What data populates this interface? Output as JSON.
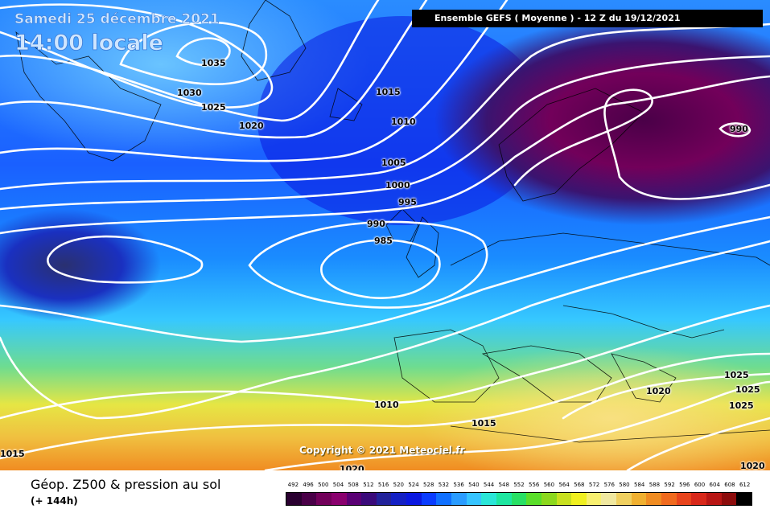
{
  "header": {
    "date_label": "Samedi 25 décembre 2021",
    "time_label": "14:00 locale",
    "model_run": "Ensemble GEFS  ( Moyenne )  -  12 Z du 19/12/2021"
  },
  "copyright": "Copyright © 2021 Meteociel.fr",
  "footer": {
    "product_title": "Géop. Z500 & pression au sol",
    "forecast_hour": "(+ 144h)"
  },
  "isobar_labels": [
    "1035",
    "1030",
    "1025",
    "1020",
    "1015",
    "1010",
    "1005",
    "1000",
    "995",
    "990",
    "985",
    "990",
    "1010",
    "1015",
    "1015",
    "1020",
    "1025",
    "1025",
    "1025",
    "1020",
    "1020"
  ],
  "color_scale": {
    "values": [
      "492",
      "496",
      "500",
      "504",
      "508",
      "512",
      "516",
      "520",
      "524",
      "528",
      "532",
      "536",
      "540",
      "544",
      "548",
      "552",
      "556",
      "560",
      "564",
      "568",
      "572",
      "576",
      "580",
      "584",
      "588",
      "592",
      "596",
      "600",
      "604",
      "608",
      "612"
    ],
    "colors": [
      "#2a0030",
      "#4a0048",
      "#72005a",
      "#8a006e",
      "#5a0074",
      "#3a0a7a",
      "#22229a",
      "#1420c4",
      "#0a18e0",
      "#0a3cff",
      "#1070ff",
      "#2a9cff",
      "#36c4ff",
      "#2ae6d8",
      "#1ee6a0",
      "#28e064",
      "#5ade2a",
      "#8cd81e",
      "#c8e020",
      "#f0f020",
      "#f8f070",
      "#f0e8a0",
      "#f0d060",
      "#f0b030",
      "#f08c22",
      "#f06a1e",
      "#e8441c",
      "#d8281a",
      "#b81614",
      "#8c0c0c",
      "#000000"
    ]
  },
  "colors": {
    "isobar": "#ffffff",
    "footer_text": "#000000"
  }
}
